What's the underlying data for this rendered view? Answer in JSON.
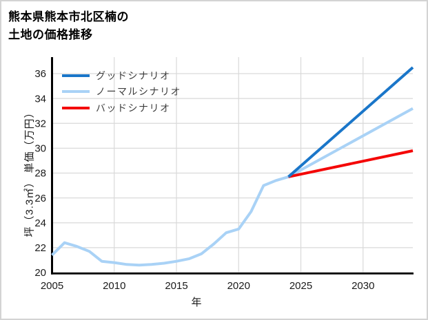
{
  "title": {
    "line1": "熊本県熊本市北区楠の",
    "line2": "土地の価格推移"
  },
  "chart_data": {
    "type": "line",
    "title": "熊本県熊本市北区楠の 土地の価格推移",
    "xlabel": "年",
    "ylabel": "坪（3.3㎡） 単価（万円）",
    "xlim": [
      2005,
      2034
    ],
    "ylim": [
      20,
      37.33
    ],
    "xticks": [
      2005,
      2010,
      2015,
      2020,
      2025,
      2030
    ],
    "yticks": [
      20,
      22,
      24,
      26,
      28,
      30,
      32,
      34,
      36
    ],
    "grid": true,
    "grid_color": "#d9d9d9",
    "axis_color": "#000000",
    "legend_position": "top-left",
    "series": [
      {
        "id": "historical",
        "in_legend": false,
        "color": "#a9d2f6",
        "width": 4,
        "x": [
          2005,
          2006,
          2007,
          2008,
          2009,
          2010,
          2011,
          2012,
          2013,
          2014,
          2015,
          2016,
          2017,
          2018,
          2019,
          2020,
          2021,
          2022,
          2023,
          2024
        ],
        "y": [
          21.4,
          22.4,
          22.1,
          21.7,
          20.9,
          20.8,
          20.65,
          20.6,
          20.65,
          20.75,
          20.9,
          21.1,
          21.5,
          22.3,
          23.2,
          23.5,
          24.9,
          27.0,
          27.4,
          27.7
        ]
      },
      {
        "id": "normal",
        "label": "ノーマルシナリオ",
        "in_legend": true,
        "legend_order": 2,
        "color": "#a9d2f6",
        "width": 4,
        "x": [
          2024,
          2034
        ],
        "y": [
          27.7,
          33.2
        ]
      },
      {
        "id": "bad",
        "label": "バッドシナリオ",
        "in_legend": true,
        "legend_order": 3,
        "color": "#f40606",
        "width": 4,
        "x": [
          2024,
          2034
        ],
        "y": [
          27.7,
          29.8
        ]
      },
      {
        "id": "good",
        "label": "グッドシナリオ",
        "in_legend": true,
        "legend_order": 1,
        "color": "#1a76c9",
        "width": 4,
        "x": [
          2024,
          2034
        ],
        "y": [
          27.7,
          36.5
        ]
      }
    ]
  }
}
